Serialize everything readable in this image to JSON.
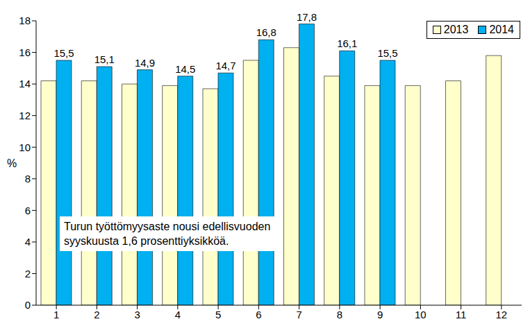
{
  "chart_data": {
    "type": "bar",
    "y_label": "%",
    "annotation": "Turun työttömyysaste nousi edellisvuoden syyskuusta 1,6 prosenttiyksikköä.",
    "categories": [
      1,
      2,
      3,
      4,
      5,
      6,
      7,
      8,
      9,
      10,
      11,
      12
    ],
    "series": [
      {
        "name": "2013",
        "color": "#FFFFCC",
        "values": [
          14.2,
          14.2,
          14.0,
          13.9,
          13.7,
          15.5,
          16.3,
          14.5,
          13.9,
          13.9,
          14.2,
          15.8
        ]
      },
      {
        "name": "2014",
        "color": "#00B0F0",
        "data_labels": true,
        "values": [
          15.5,
          15.1,
          14.9,
          14.5,
          14.7,
          16.8,
          17.8,
          16.1,
          15.5,
          null,
          null,
          null
        ],
        "value_labels": [
          "15,5",
          "15,1",
          "14,9",
          "14,5",
          "14,7",
          "16,8",
          "17,8",
          "16,1",
          "15,5",
          null,
          null,
          null
        ]
      }
    ],
    "ylim": [
      0,
      18
    ],
    "yticks": [
      0,
      2,
      4,
      6,
      8,
      10,
      12,
      14,
      16,
      18
    ],
    "grid": false,
    "legend": "upper right"
  }
}
